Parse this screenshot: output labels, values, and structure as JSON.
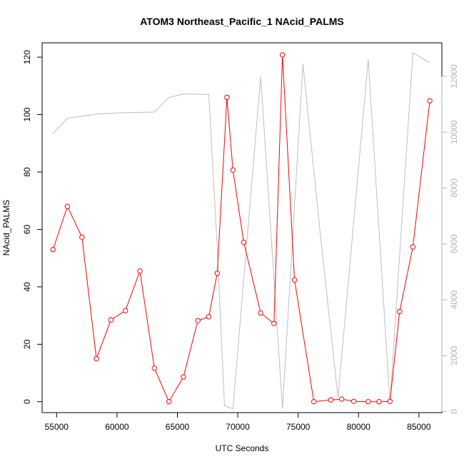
{
  "chart_data": {
    "type": "line",
    "title": "ATOM3 Northeast_Pacific_1 NAcid_PALMS",
    "xlabel": "UTC Seconds",
    "ylabel": "NAcid_PALMS",
    "xlim": [
      53800,
      86900
    ],
    "ylim": [
      -3.8,
      125
    ],
    "y2lim": [
      -40,
      13200
    ],
    "x_ticks": [
      "55000",
      "60000",
      "65000",
      "70000",
      "75000",
      "80000",
      "85000"
    ],
    "y_ticks": [
      "0",
      "20",
      "40",
      "60",
      "80",
      "100",
      "120"
    ],
    "y2_ticks": [
      "0",
      "2000",
      "4000",
      "6000",
      "8000",
      "10000",
      "12000"
    ],
    "grid": false,
    "legend": "none",
    "colors": {
      "primary": "#ff0000",
      "secondary": "#bebebe",
      "axis": "#000000",
      "axis_right": "#b3b3b3"
    },
    "series": [
      {
        "axis": "left",
        "points": [
          [
            54700,
            53.0
          ],
          [
            55900,
            68.0
          ],
          [
            57100,
            57.3
          ],
          [
            58300,
            15.0
          ],
          [
            59500,
            28.5
          ],
          [
            60700,
            31.7
          ],
          [
            61900,
            45.5
          ],
          [
            63100,
            11.7
          ],
          [
            64300,
            0.0
          ],
          [
            65500,
            8.6
          ],
          [
            66700,
            28.2
          ],
          [
            67600,
            29.6
          ],
          [
            68300,
            44.7
          ],
          [
            69100,
            106.0
          ],
          [
            69600,
            80.7
          ],
          [
            70500,
            55.5
          ],
          [
            71900,
            30.9
          ],
          [
            73000,
            27.2
          ],
          [
            73700,
            120.8
          ],
          [
            74700,
            42.4
          ],
          [
            76300,
            0.0
          ],
          [
            77700,
            0.6
          ],
          [
            78600,
            0.9
          ],
          [
            79600,
            0.1
          ],
          [
            80800,
            0.0
          ],
          [
            81700,
            0.0
          ],
          [
            82600,
            0.1
          ],
          [
            83400,
            31.4
          ],
          [
            84500,
            53.9
          ],
          [
            85900,
            104.8
          ]
        ]
      },
      {
        "axis": "right",
        "points": [
          [
            54700,
            9950
          ],
          [
            55900,
            10500
          ],
          [
            58300,
            10650
          ],
          [
            60700,
            10700
          ],
          [
            63100,
            10720
          ],
          [
            64300,
            11240
          ],
          [
            65500,
            11370
          ],
          [
            67600,
            11350
          ],
          [
            68300,
            5900
          ],
          [
            68900,
            200
          ],
          [
            69600,
            100
          ],
          [
            71900,
            12000
          ],
          [
            73700,
            100
          ],
          [
            75400,
            12450
          ],
          [
            76800,
            6500
          ],
          [
            78300,
            500
          ],
          [
            80800,
            12600
          ],
          [
            82600,
            300
          ],
          [
            84500,
            12850
          ],
          [
            85900,
            12480
          ]
        ]
      }
    ]
  }
}
